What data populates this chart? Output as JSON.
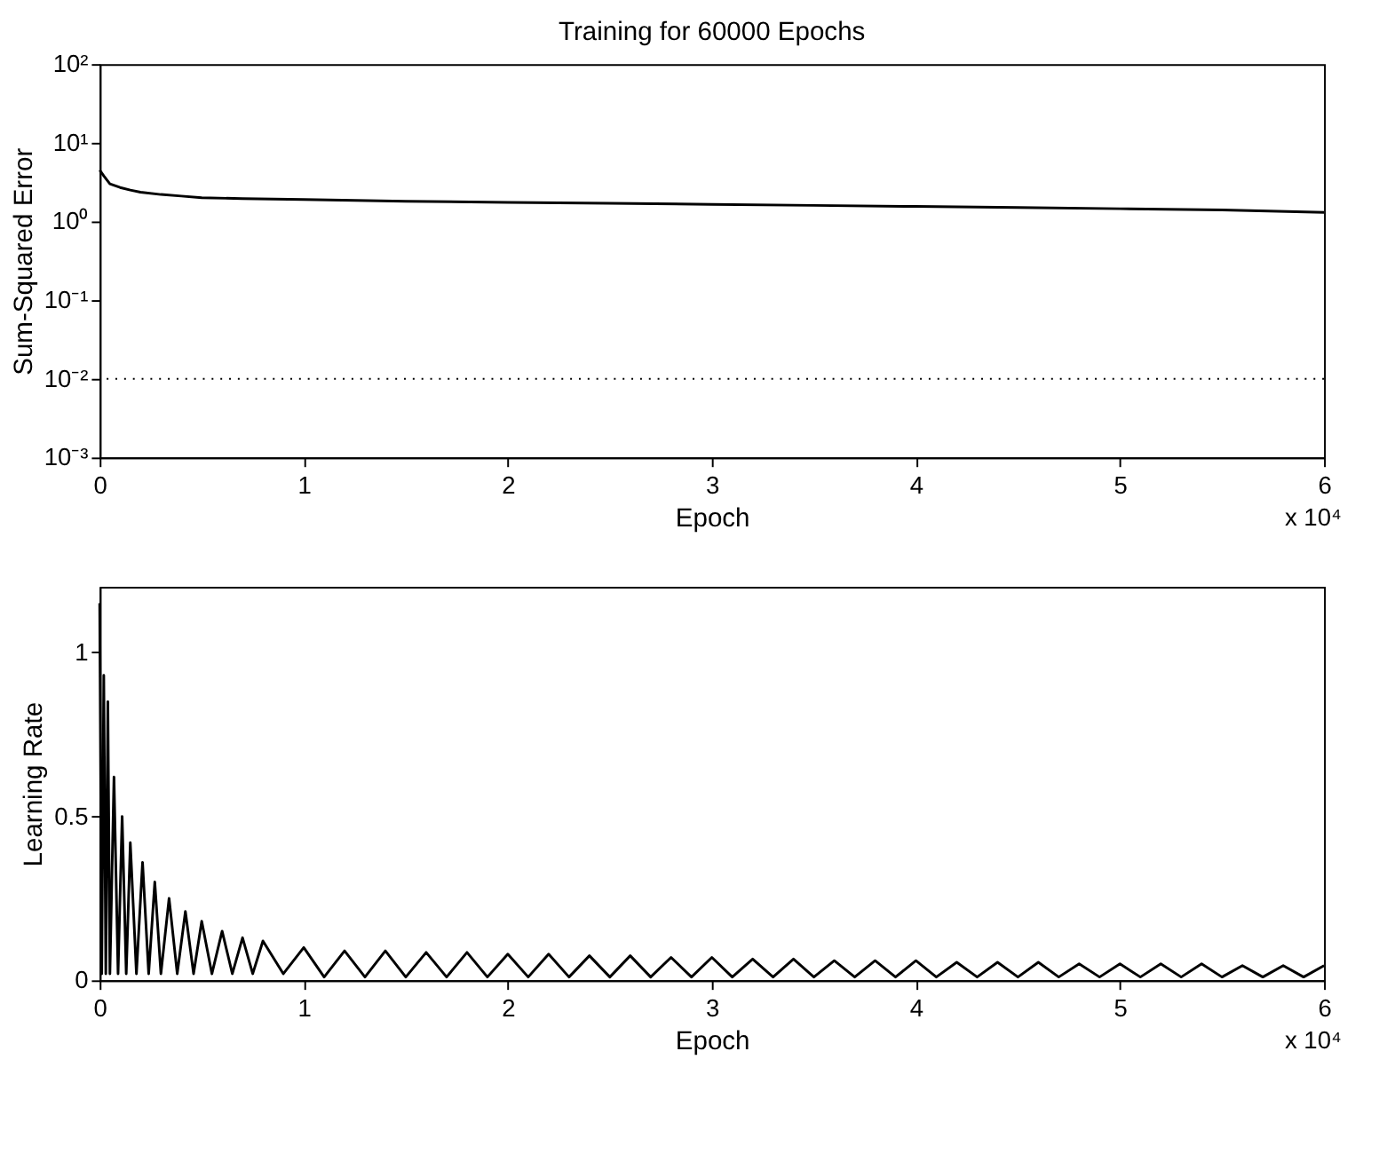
{
  "chart_data": [
    {
      "type": "line",
      "title": "Training for 60000 Epochs",
      "xlabel": "Epoch",
      "ylabel": "Sum-Squared Error",
      "log": "y",
      "grid": false,
      "marker": "none",
      "line_style": "solid",
      "x": [
        0,
        0.02,
        0.05,
        0.1,
        0.15,
        0.2,
        0.3,
        0.4,
        0.5,
        0.7,
        1,
        1.5,
        2,
        2.5,
        3,
        3.5,
        4,
        4.5,
        5,
        5.5,
        6
      ],
      "series": [
        {
          "color": "#000000",
          "values": [
            4.5,
            3.8,
            3.0,
            2.7,
            2.5,
            2.35,
            2.2,
            2.1,
            2.0,
            1.95,
            1.9,
            1.8,
            1.75,
            1.7,
            1.65,
            1.6,
            1.55,
            1.5,
            1.45,
            1.4,
            1.3
          ]
        }
      ],
      "xlim": [
        0,
        6
      ],
      "xticks": [
        0,
        1,
        2,
        3,
        4,
        5,
        6
      ],
      "ylim": [
        0.001,
        100
      ],
      "yticks": [
        {
          "value": 0.001,
          "label": "10⁻³"
        },
        {
          "value": 0.01,
          "label": "10⁻²"
        },
        {
          "value": 0.1,
          "label": "10⁻¹"
        },
        {
          "value": 1,
          "label": "10⁰"
        },
        {
          "value": 10,
          "label": "10¹"
        },
        {
          "value": 100,
          "label": "10²"
        }
      ],
      "ref_lines": [
        {
          "axis": "y",
          "value": 0.01,
          "color": "#000000",
          "line_style": "dotted"
        }
      ],
      "annotations": [
        "x 10⁴"
      ]
    },
    {
      "type": "line",
      "xlabel": "Epoch",
      "ylabel": "Learning Rate",
      "grid": false,
      "marker": "none",
      "line_style": "solid",
      "x": [
        0,
        0.01,
        0.02,
        0.03,
        0.04,
        0.05,
        0.07,
        0.09,
        0.11,
        0.13,
        0.15,
        0.18,
        0.21,
        0.24,
        0.27,
        0.3,
        0.34,
        0.38,
        0.42,
        0.46,
        0.5,
        0.55,
        0.6,
        0.65,
        0.7,
        0.75,
        0.8,
        0.9,
        1,
        1.1,
        1.2,
        1.3,
        1.4,
        1.5,
        1.6,
        1.7,
        1.8,
        1.9,
        2,
        2.1,
        2.2,
        2.3,
        2.4,
        2.5,
        2.6,
        2.7,
        2.8,
        2.9,
        3,
        3.1,
        3.2,
        3.3,
        3.4,
        3.5,
        3.6,
        3.7,
        3.8,
        3.9,
        4,
        4.1,
        4.2,
        4.3,
        4.4,
        4.5,
        4.6,
        4.7,
        4.8,
        4.9,
        5,
        5.1,
        5.2,
        5.3,
        5.4,
        5.5,
        5.6,
        5.7,
        5.8,
        5.9,
        6
      ],
      "series": [
        {
          "color": "#000000",
          "values": [
            1.15,
            0.02,
            0.93,
            0.02,
            0.85,
            0.02,
            0.62,
            0.02,
            0.5,
            0.02,
            0.42,
            0.02,
            0.36,
            0.02,
            0.3,
            0.02,
            0.25,
            0.02,
            0.21,
            0.02,
            0.18,
            0.02,
            0.15,
            0.02,
            0.13,
            0.02,
            0.12,
            0.02,
            0.1,
            0.01,
            0.09,
            0.01,
            0.09,
            0.01,
            0.085,
            0.01,
            0.085,
            0.01,
            0.08,
            0.01,
            0.08,
            0.01,
            0.075,
            0.01,
            0.075,
            0.01,
            0.07,
            0.01,
            0.07,
            0.01,
            0.065,
            0.01,
            0.065,
            0.01,
            0.06,
            0.01,
            0.06,
            0.01,
            0.06,
            0.01,
            0.055,
            0.01,
            0.055,
            0.01,
            0.055,
            0.01,
            0.05,
            0.01,
            0.05,
            0.01,
            0.05,
            0.01,
            0.05,
            0.01,
            0.045,
            0.01,
            0.045,
            0.01,
            0.045
          ]
        }
      ],
      "xlim": [
        0,
        6
      ],
      "xticks": [
        0,
        1,
        2,
        3,
        4,
        5,
        6
      ],
      "ylim": [
        0,
        1.2
      ],
      "yticks": [
        0,
        0.5,
        1
      ],
      "annotations": [
        "x 10⁴"
      ]
    }
  ]
}
